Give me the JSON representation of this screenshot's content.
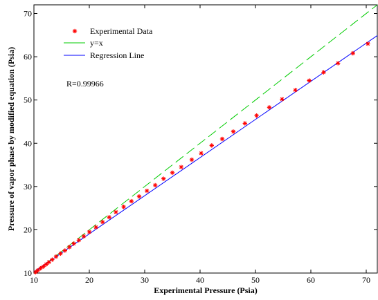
{
  "chart_data": {
    "type": "scatter",
    "title": "",
    "xlabel": "Experimental Pressure (Psia)",
    "ylabel": "Pressure of vapor phase by modified equation (Psia)",
    "xlim": [
      10,
      72
    ],
    "ylim": [
      10,
      72
    ],
    "xticks": [
      10,
      20,
      30,
      40,
      50,
      60,
      70
    ],
    "yticks": [
      10,
      20,
      30,
      40,
      50,
      60,
      70
    ],
    "grid": false,
    "legend_position": "top-left",
    "annotation": "R=0.99966",
    "colors": {
      "experimental": "#ff0000",
      "identity": "#00cc00",
      "regression": "#0000ff"
    },
    "series": [
      {
        "name": "Experimental Data",
        "kind": "scatter",
        "marker": "asterisk",
        "x": [
          10.3,
          10.7,
          11.2,
          11.7,
          12.2,
          12.7,
          13.3,
          14.0,
          14.8,
          15.6,
          16.4,
          17.2,
          18.1,
          19.0,
          20.0,
          21.2,
          22.4,
          23.6,
          24.8,
          26.2,
          27.6,
          29.0,
          30.4,
          31.9,
          33.4,
          35.0,
          36.6,
          38.5,
          40.2,
          42.1,
          44.0,
          46.0,
          48.1,
          50.2,
          52.5,
          54.8,
          57.2,
          59.7,
          62.3,
          64.9,
          67.6,
          70.3
        ],
        "y": [
          10.2,
          10.6,
          11.1,
          11.5,
          12.0,
          12.5,
          13.1,
          13.8,
          14.5,
          15.2,
          16.0,
          16.8,
          17.6,
          18.5,
          19.5,
          20.6,
          21.8,
          22.9,
          24.1,
          25.3,
          26.6,
          27.7,
          29.0,
          30.3,
          31.8,
          33.2,
          34.5,
          36.2,
          37.7,
          39.5,
          41.0,
          42.7,
          44.6,
          46.4,
          48.3,
          50.2,
          52.3,
          54.5,
          56.4,
          58.5,
          60.8,
          63.0
        ]
      },
      {
        "name": "y=x",
        "kind": "line",
        "style": "dashed",
        "x": [
          10,
          72
        ],
        "y": [
          10,
          72
        ]
      },
      {
        "name": "Regression Line",
        "kind": "line",
        "style": "solid",
        "x": [
          10,
          72
        ],
        "y": [
          10.25,
          64.9
        ]
      }
    ]
  }
}
